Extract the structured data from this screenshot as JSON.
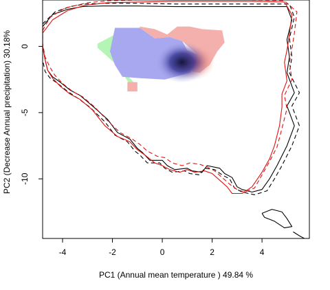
{
  "chart_data": {
    "type": "scatter",
    "xlabel": "PC1 (Annual mean temperature ) 49.84 %",
    "ylabel": "PC2 (Decrease Annual precipitation) 30.18%",
    "xlim": [
      -4.8,
      5.9
    ],
    "ylim": [
      -14.5,
      3.5
    ],
    "x_ticks": [
      -4,
      -2,
      0,
      2,
      4
    ],
    "y_ticks": [
      0,
      -5,
      -10
    ],
    "grid": false,
    "legend": "none",
    "colors": {
      "overlap_blue": "#a8a8f0",
      "native_only_green": "#b4f4b4",
      "invaded_only_red": "#f4b0ac",
      "density_dark": "#14143c",
      "density_red": "#c02818",
      "env_native_line": "#000000",
      "env_invaded_line": "#e01010"
    },
    "density_peak": {
      "x": 0.9,
      "y": -1.2
    },
    "regions": {
      "overlap_blue": [
        [
          -1.9,
          1.4
        ],
        [
          -0.9,
          1.4
        ],
        [
          -0.6,
          1.0
        ],
        [
          -0.3,
          0.6
        ],
        [
          0.3,
          0.7
        ],
        [
          0.8,
          0.4
        ],
        [
          1.0,
          -0.3
        ],
        [
          1.4,
          -0.6
        ],
        [
          1.3,
          -1.6
        ],
        [
          1.1,
          -2.0
        ],
        [
          0.1,
          -2.5
        ],
        [
          -0.9,
          -2.4
        ],
        [
          -1.6,
          -2.3
        ],
        [
          -1.9,
          -1.4
        ],
        [
          -2.1,
          -0.4
        ],
        [
          -2.0,
          0.5
        ]
      ],
      "native_only_green": [
        [
          -2.6,
          0.2
        ],
        [
          -1.9,
          0.9
        ],
        [
          -1.8,
          1.1
        ],
        [
          -2.1,
          -0.5
        ],
        [
          -1.5,
          -2.3
        ],
        [
          -1.3,
          -2.9
        ],
        [
          -1.0,
          -3.0
        ],
        [
          -1.6,
          -1.8
        ],
        [
          -2.3,
          -0.6
        ],
        [
          -2.6,
          -0.1
        ]
      ],
      "invaded_only_red": [
        [
          -0.9,
          1.5
        ],
        [
          -0.3,
          1.3
        ],
        [
          0.2,
          0.9
        ],
        [
          0.6,
          1.5
        ],
        [
          1.1,
          1.5
        ],
        [
          1.6,
          1.3
        ],
        [
          2.4,
          1.2
        ],
        [
          2.5,
          0.3
        ],
        [
          2.2,
          -0.4
        ],
        [
          1.9,
          -1.4
        ],
        [
          1.5,
          -2.0
        ],
        [
          1.2,
          -1.9
        ],
        [
          1.4,
          -0.6
        ],
        [
          0.8,
          0.4
        ],
        [
          0.3,
          0.7
        ],
        [
          -0.3,
          0.6
        ],
        [
          -0.6,
          1.0
        ],
        [
          -0.9,
          1.4
        ]
      ],
      "invaded_patch": [
        [
          -1.4,
          -2.7
        ],
        [
          -1.0,
          -2.7
        ],
        [
          -1.0,
          -3.4
        ],
        [
          -1.4,
          -3.4
        ]
      ]
    },
    "series": [
      {
        "style": "solid",
        "color": "#000000",
        "points": [
          [
            -4.8,
            1.5
          ],
          [
            -4.4,
            2.4
          ],
          [
            -3.8,
            2.8
          ],
          [
            -3.2,
            3.0
          ],
          [
            -2.4,
            3.05
          ],
          [
            -1.0,
            3.05
          ],
          [
            0.5,
            3.0
          ],
          [
            2.5,
            3.0
          ],
          [
            5.0,
            3.0
          ],
          [
            5.2,
            2.0
          ],
          [
            5.0,
            0.5
          ],
          [
            5.1,
            -0.8
          ],
          [
            5.0,
            -2.0
          ],
          [
            5.3,
            -3.5
          ],
          [
            5.0,
            -4.5
          ],
          [
            5.3,
            -6.0
          ],
          [
            5.0,
            -7.5
          ],
          [
            4.6,
            -9.0
          ],
          [
            4.3,
            -10.0
          ],
          [
            4.0,
            -10.8
          ],
          [
            3.6,
            -11.0
          ],
          [
            3.2,
            -10.8
          ],
          [
            3.0,
            -10.6
          ],
          [
            2.8,
            -9.9
          ],
          [
            2.5,
            -9.6
          ],
          [
            2.3,
            -9.2
          ],
          [
            1.8,
            -9.0
          ],
          [
            1.6,
            -9.5
          ],
          [
            1.2,
            -9.4
          ],
          [
            1.0,
            -9.2
          ],
          [
            0.5,
            -9.3
          ],
          [
            0.2,
            -9.0
          ],
          [
            0.0,
            -8.6
          ],
          [
            -0.5,
            -8.6
          ],
          [
            -0.8,
            -8.0
          ],
          [
            -1.0,
            -7.7
          ],
          [
            -1.3,
            -7.0
          ],
          [
            -1.8,
            -6.5
          ],
          [
            -2.2,
            -5.5
          ],
          [
            -2.8,
            -4.5
          ],
          [
            -3.3,
            -3.7
          ],
          [
            -3.7,
            -3.3
          ],
          [
            -4.1,
            -2.7
          ],
          [
            -4.4,
            -2.3
          ],
          [
            -4.6,
            -1.8
          ],
          [
            -4.7,
            -1.0
          ],
          [
            -4.8,
            0.0
          ],
          [
            -4.8,
            1.5
          ]
        ]
      },
      {
        "style": "dashed",
        "color": "#000000",
        "points": [
          [
            -4.8,
            1.7
          ],
          [
            -4.3,
            2.6
          ],
          [
            -3.7,
            3.0
          ],
          [
            -3.1,
            3.2
          ],
          [
            -2.3,
            3.25
          ],
          [
            -1.0,
            3.25
          ],
          [
            0.5,
            3.2
          ],
          [
            2.5,
            3.2
          ],
          [
            5.1,
            3.2
          ],
          [
            5.3,
            2.2
          ],
          [
            5.1,
            0.6
          ],
          [
            5.2,
            -0.8
          ],
          [
            5.1,
            -2.0
          ],
          [
            5.5,
            -3.5
          ],
          [
            5.2,
            -4.5
          ],
          [
            5.5,
            -6.0
          ],
          [
            5.2,
            -7.5
          ],
          [
            4.8,
            -9.0
          ],
          [
            4.5,
            -10.0
          ],
          [
            4.2,
            -10.9
          ],
          [
            3.7,
            -11.2
          ],
          [
            3.2,
            -11.0
          ],
          [
            2.9,
            -10.7
          ],
          [
            2.7,
            -10.0
          ],
          [
            2.4,
            -9.7
          ],
          [
            2.1,
            -9.3
          ],
          [
            1.7,
            -9.2
          ],
          [
            1.5,
            -9.7
          ],
          [
            1.1,
            -9.6
          ],
          [
            0.9,
            -9.4
          ],
          [
            0.4,
            -9.5
          ],
          [
            0.1,
            -9.2
          ],
          [
            -0.1,
            -8.8
          ],
          [
            -0.6,
            -8.8
          ],
          [
            -0.9,
            -8.2
          ],
          [
            -1.1,
            -7.9
          ],
          [
            -1.4,
            -7.2
          ],
          [
            -1.9,
            -6.7
          ],
          [
            -2.3,
            -5.7
          ],
          [
            -2.9,
            -4.6
          ],
          [
            -3.4,
            -3.9
          ],
          [
            -3.8,
            -3.4
          ],
          [
            -4.2,
            -2.8
          ],
          [
            -4.5,
            -2.4
          ],
          [
            -4.7,
            -1.9
          ],
          [
            -4.8,
            -1.0
          ],
          [
            -4.8,
            1.7
          ]
        ]
      },
      {
        "style": "solid",
        "color": "#e01010",
        "points": [
          [
            -4.8,
            1.0
          ],
          [
            -4.4,
            2.0
          ],
          [
            -3.8,
            2.7
          ],
          [
            -3.1,
            3.1
          ],
          [
            -2.2,
            3.3
          ],
          [
            -1.0,
            3.35
          ],
          [
            0.5,
            3.4
          ],
          [
            3.5,
            3.4
          ],
          [
            4.9,
            3.35
          ],
          [
            5.2,
            2.4
          ],
          [
            5.1,
            0.9
          ],
          [
            5.0,
            -0.3
          ],
          [
            4.9,
            -1.2
          ],
          [
            5.0,
            -2.6
          ],
          [
            4.8,
            -3.6
          ],
          [
            4.8,
            -4.6
          ],
          [
            4.7,
            -6.0
          ],
          [
            4.5,
            -7.5
          ],
          [
            4.3,
            -8.5
          ],
          [
            4.0,
            -9.5
          ],
          [
            3.6,
            -10.6
          ],
          [
            3.2,
            -11.1
          ],
          [
            2.8,
            -11.1
          ],
          [
            2.6,
            -10.6
          ],
          [
            2.3,
            -10.1
          ],
          [
            2.0,
            -9.6
          ],
          [
            1.7,
            -9.4
          ],
          [
            1.3,
            -9.5
          ],
          [
            1.0,
            -9.3
          ],
          [
            0.7,
            -9.5
          ],
          [
            0.3,
            -9.3
          ],
          [
            0.0,
            -9.0
          ],
          [
            -0.3,
            -8.8
          ],
          [
            -0.7,
            -8.2
          ],
          [
            -1.0,
            -7.8
          ],
          [
            -1.3,
            -7.2
          ],
          [
            -1.8,
            -6.8
          ],
          [
            -2.3,
            -6.0
          ],
          [
            -2.8,
            -4.8
          ],
          [
            -3.3,
            -4.0
          ],
          [
            -3.7,
            -3.6
          ],
          [
            -4.1,
            -3.0
          ],
          [
            -4.4,
            -2.4
          ],
          [
            -4.6,
            -1.8
          ],
          [
            -4.7,
            -1.0
          ],
          [
            -4.8,
            0.0
          ],
          [
            -4.8,
            1.0
          ]
        ]
      },
      {
        "style": "dashed",
        "color": "#e01010",
        "points": [
          [
            -4.8,
            1.2
          ],
          [
            -4.5,
            2.2
          ],
          [
            -3.9,
            2.9
          ],
          [
            -3.0,
            3.3
          ],
          [
            -2.1,
            3.45
          ],
          [
            -1.0,
            3.5
          ],
          [
            0.5,
            3.5
          ],
          [
            3.5,
            3.5
          ],
          [
            4.9,
            3.45
          ],
          [
            5.4,
            2.6
          ],
          [
            5.3,
            1.0
          ],
          [
            5.2,
            -0.2
          ],
          [
            5.1,
            -1.2
          ],
          [
            5.2,
            -2.5
          ],
          [
            4.9,
            -3.7
          ],
          [
            5.0,
            -4.7
          ],
          [
            4.8,
            -6.2
          ],
          [
            4.6,
            -7.6
          ],
          [
            4.3,
            -8.7
          ],
          [
            4.0,
            -9.7
          ],
          [
            3.7,
            -10.7
          ],
          [
            3.3,
            -11.0
          ],
          [
            3.0,
            -10.8
          ],
          [
            2.7,
            -10.4
          ],
          [
            2.4,
            -9.9
          ],
          [
            2.1,
            -9.4
          ],
          [
            1.8,
            -9.1
          ],
          [
            1.5,
            -8.9
          ],
          [
            1.1,
            -8.8
          ],
          [
            0.8,
            -9.0
          ],
          [
            0.4,
            -8.8
          ],
          [
            0.1,
            -8.4
          ],
          [
            -0.2,
            -8.3
          ],
          [
            -0.6,
            -7.9
          ],
          [
            -0.9,
            -7.4
          ],
          [
            -1.2,
            -7.0
          ],
          [
            -1.7,
            -6.5
          ],
          [
            -2.2,
            -5.6
          ],
          [
            -2.7,
            -4.6
          ],
          [
            -3.2,
            -3.8
          ],
          [
            -3.6,
            -3.4
          ],
          [
            -4.0,
            -2.8
          ],
          [
            -4.3,
            -2.2
          ],
          [
            -4.5,
            -1.6
          ],
          [
            -4.7,
            -0.8
          ],
          [
            -4.8,
            0.2
          ],
          [
            -4.8,
            1.2
          ]
        ]
      },
      {
        "style": "solid",
        "color": "#000000",
        "points": [
          [
            4.0,
            -12.6
          ],
          [
            4.4,
            -12.3
          ],
          [
            4.8,
            -12.5
          ],
          [
            5.0,
            -13.0
          ],
          [
            5.2,
            -13.6
          ],
          [
            4.9,
            -13.7
          ],
          [
            4.5,
            -13.2
          ],
          [
            4.1,
            -12.9
          ],
          [
            4.0,
            -12.6
          ]
        ]
      },
      {
        "style": "solid",
        "color": "#000000",
        "points": [
          [
            5.25,
            -14.0
          ],
          [
            5.5,
            -14.3
          ],
          [
            5.7,
            -14.5
          ]
        ]
      }
    ]
  }
}
